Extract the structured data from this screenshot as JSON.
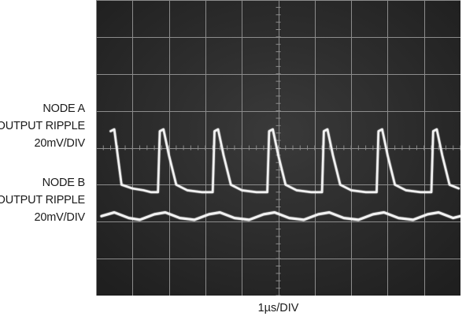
{
  "chart_data": {
    "type": "line",
    "title": "",
    "xlabel": "1µs/DIV",
    "ylabel": "",
    "grid": true,
    "grid_divisions": {
      "x": 10,
      "y": 8
    },
    "x_unit": "µs",
    "xlim": [
      0,
      10
    ],
    "ylim": [
      -4,
      4
    ],
    "series": [
      {
        "label_lines": [
          "NODE A",
          "OUTPUT RIPPLE",
          "20mV/DIV"
        ],
        "color": "#f2f2f2",
        "x": [
          0.4,
          0.5,
          0.7,
          1.0,
          1.3,
          1.5,
          1.7,
          1.75,
          1.85,
          2.0,
          2.2,
          2.5,
          2.9,
          3.2,
          3.25,
          3.35,
          3.5,
          3.7,
          4.0,
          4.4,
          4.7,
          4.75,
          4.85,
          5.0,
          5.2,
          5.5,
          5.9,
          6.2,
          6.25,
          6.35,
          6.5,
          6.7,
          7.0,
          7.4,
          7.7,
          7.75,
          7.85,
          8.0,
          8.2,
          8.5,
          8.9,
          9.2,
          9.25,
          9.35,
          9.5,
          9.7,
          9.95
        ],
        "y": [
          0.45,
          0.5,
          -1.0,
          -1.1,
          -1.15,
          -1.2,
          -1.2,
          0.45,
          0.5,
          -0.2,
          -1.0,
          -1.15,
          -1.2,
          -1.2,
          0.45,
          0.5,
          -0.2,
          -1.0,
          -1.15,
          -1.2,
          -1.2,
          0.45,
          0.5,
          -0.2,
          -1.0,
          -1.15,
          -1.2,
          -1.2,
          0.45,
          0.5,
          -0.2,
          -1.0,
          -1.15,
          -1.2,
          -1.2,
          0.45,
          0.5,
          -0.2,
          -1.0,
          -1.15,
          -1.2,
          -1.2,
          0.45,
          0.5,
          -0.2,
          -1.0,
          -1.1
        ]
      },
      {
        "label_lines": [
          "NODE B",
          "OUTPUT RIPPLE",
          "20mV/DIV"
        ],
        "color": "#f2f2f2",
        "x": [
          0.15,
          0.5,
          0.9,
          1.2,
          1.6,
          1.9,
          2.3,
          2.7,
          3.1,
          3.4,
          3.8,
          4.2,
          4.6,
          4.9,
          5.3,
          5.7,
          6.1,
          6.4,
          6.8,
          7.2,
          7.6,
          7.9,
          8.3,
          8.7,
          9.1,
          9.4,
          9.8,
          10.0
        ],
        "y": [
          -1.85,
          -1.75,
          -1.9,
          -1.95,
          -1.8,
          -1.75,
          -1.9,
          -1.95,
          -1.8,
          -1.75,
          -1.9,
          -1.95,
          -1.8,
          -1.75,
          -1.9,
          -1.95,
          -1.8,
          -1.75,
          -1.9,
          -1.95,
          -1.8,
          -1.75,
          -1.9,
          -1.95,
          -1.8,
          -1.75,
          -1.9,
          -1.85
        ]
      }
    ]
  },
  "labels": {
    "node_a": [
      "NODE A",
      "OUTPUT RIPPLE",
      "20mV/DIV"
    ],
    "node_b": [
      "NODE B",
      "OUTPUT RIPPLE",
      "20mV/DIV"
    ],
    "x_axis": "1µs/DIV"
  },
  "colors": {
    "screen": "#2b2b2b",
    "grid": "#8c8c8c",
    "trace": "#f2f2f2"
  }
}
